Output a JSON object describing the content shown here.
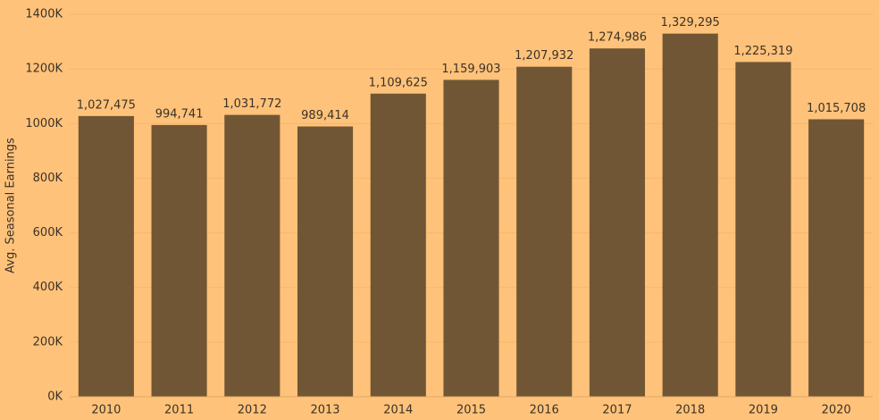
{
  "chart_data": {
    "type": "bar",
    "y_label": "Avg. Seasonal Earnings",
    "categories": [
      "2010",
      "2011",
      "2012",
      "2013",
      "2014",
      "2015",
      "2016",
      "2017",
      "2018",
      "2019",
      "2020"
    ],
    "values": [
      1027475,
      994741,
      1031772,
      989414,
      1109625,
      1159903,
      1207932,
      1274986,
      1329295,
      1225319,
      1015708
    ],
    "value_labels": [
      "1,027,475",
      "994,741",
      "1,031,772",
      "989,414",
      "1,109,625",
      "1,159,903",
      "1,207,932",
      "1,274,986",
      "1,329,295",
      "1,225,319",
      "1,015,708"
    ],
    "color": "#705634",
    "ylim": [
      0,
      1400000
    ],
    "yticks": [
      {
        "value": 0,
        "label": "0K"
      },
      {
        "value": 200000,
        "label": "200K"
      },
      {
        "value": 400000,
        "label": "400K"
      },
      {
        "value": 600000,
        "label": "600K"
      },
      {
        "value": 800000,
        "label": "800K"
      },
      {
        "value": 1000000,
        "label": "1000K"
      },
      {
        "value": 1200000,
        "label": "1200K"
      },
      {
        "value": 1400000,
        "label": "1400K"
      }
    ],
    "grid": true
  }
}
